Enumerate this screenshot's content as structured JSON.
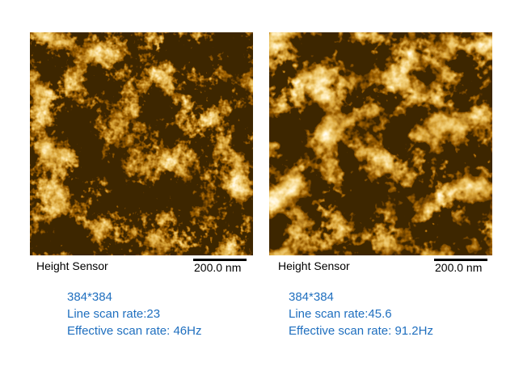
{
  "panels": [
    {
      "label": "Height Sensor",
      "scale_bar": "200.0 nm",
      "info": [
        "384*384",
        "Line scan rate:23",
        "Effective scan rate: 46Hz"
      ]
    },
    {
      "label": "Height Sensor",
      "scale_bar": "200.0 nm",
      "info": [
        "384*384",
        "Line scan rate:45.6",
        "Effective scan rate: 91.2Hz"
      ]
    }
  ]
}
